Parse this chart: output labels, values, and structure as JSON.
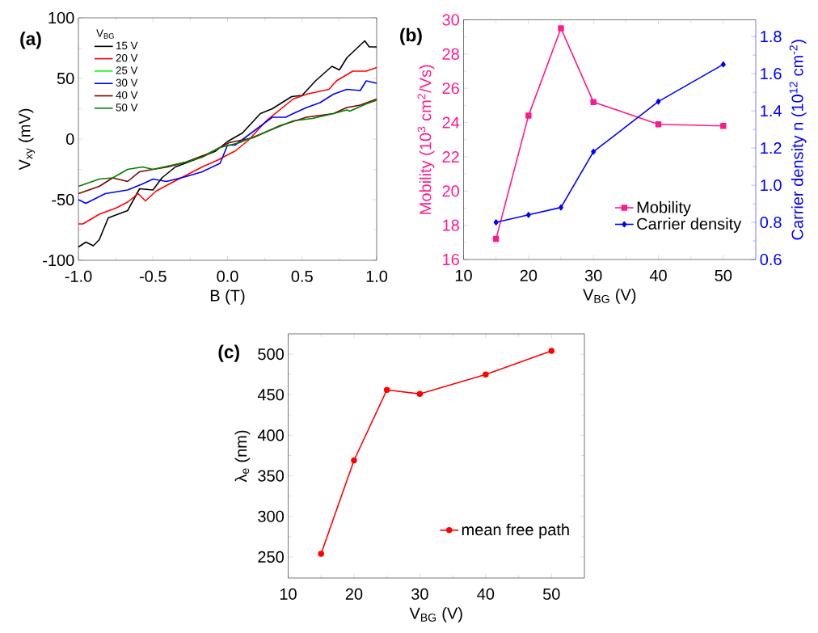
{
  "chart_data": [
    {
      "type": "line",
      "xlabel": "B (T)",
      "ylabel": "V$_{xy}$ (mV)",
      "legend_title": "V$_{BG}$",
      "legend": "top left",
      "annotations": [
        "(a)"
      ],
      "xlim": [
        -1,
        1
      ],
      "xticks": [
        {
          "value": -1,
          "label": "-1.0"
        },
        {
          "value": -0.5,
          "label": "-0.5"
        },
        {
          "value": 0,
          "label": "0.0"
        },
        {
          "value": 0.5,
          "label": "0.5"
        },
        {
          "value": 1,
          "label": "1.0"
        }
      ],
      "ylim": [
        -100,
        100
      ],
      "yticks": [
        -100,
        -50,
        0,
        50,
        100
      ],
      "series": [
        {
          "name": "15 V",
          "color": "#000000",
          "x": [
            -1,
            -0.95,
            -0.9,
            -0.86,
            -0.8,
            -0.67,
            -0.59,
            -0.5,
            -0.44,
            -0.35,
            -0.22,
            -0.08,
            0,
            0.1,
            0.22,
            0.3,
            0.43,
            0.5,
            0.59,
            0.7,
            0.75,
            0.8,
            0.92,
            0.95,
            1
          ],
          "values": [
            -89,
            -85,
            -88,
            -83,
            -65,
            -59,
            -41,
            -42,
            -32,
            -23,
            -17,
            -10,
            -2,
            5,
            21,
            25,
            35,
            36,
            48,
            60,
            57,
            67,
            81,
            76,
            76
          ]
        },
        {
          "name": "20 V",
          "color": "#ff0000",
          "x": [
            -1,
            -0.97,
            -0.86,
            -0.75,
            -0.67,
            -0.6,
            -0.55,
            -0.48,
            -0.39,
            -0.28,
            -0.17,
            -0.06,
            0,
            0.05,
            0.14,
            0.26,
            0.44,
            0.53,
            0.68,
            0.73,
            0.84,
            0.93,
            1
          ],
          "values": [
            -70,
            -70,
            -62,
            -57,
            -52,
            -45,
            -51,
            -43,
            -37,
            -30,
            -23,
            -17,
            -13,
            -10,
            -1,
            15,
            33,
            37,
            41,
            48,
            56,
            56,
            59
          ]
        },
        {
          "name": "25 V",
          "color": "#00ff00"
        },
        {
          "name": "30 V",
          "color": "#0000ff",
          "x": [
            -1,
            -0.95,
            -0.82,
            -0.67,
            -0.57,
            -0.5,
            -0.41,
            -0.28,
            -0.17,
            -0.05,
            0,
            0.05,
            0.17,
            0.3,
            0.39,
            0.44,
            0.53,
            0.62,
            0.71,
            0.8,
            0.89,
            0.93,
            1
          ],
          "values": [
            -50,
            -53,
            -45,
            -42,
            -37,
            -33,
            -35,
            -31,
            -27,
            -20,
            -5,
            -5,
            6,
            18,
            18,
            21,
            26,
            30,
            37,
            41,
            40,
            48,
            46
          ]
        },
        {
          "name": "40 V",
          "color": "#800000",
          "x": [
            -1,
            -0.86,
            -0.77,
            -0.67,
            -0.59,
            -0.5,
            -0.4,
            -0.28,
            -0.13,
            0.01,
            0.17,
            0.35,
            0.53,
            0.71,
            0.8,
            0.89,
            1
          ],
          "values": [
            -45,
            -39,
            -32,
            -35,
            -27,
            -25,
            -23,
            -19,
            -12,
            -3,
            1,
            11,
            18,
            21,
            26,
            28,
            33
          ]
        },
        {
          "name": "50 V",
          "color": "#008000",
          "x": [
            -1,
            -0.86,
            -0.77,
            -0.67,
            -0.57,
            -0.5,
            -0.39,
            -0.28,
            -0.17,
            -0.05,
            0.08,
            0.26,
            0.44,
            0.57,
            0.71,
            0.8,
            0.82,
            0.93,
            1
          ],
          "values": [
            -39,
            -33,
            -32,
            -25,
            -23,
            -25,
            -22,
            -19,
            -15,
            -7,
            -3,
            6,
            15,
            17,
            21,
            24,
            23,
            29,
            32
          ]
        }
      ]
    },
    {
      "type": "line",
      "xlabel": "V$_{BG}$ (V)",
      "ylabel": "Mobility (10$^{3}$ cm$^{2}$/Vs)",
      "y2label": "Carrier density n (10$^{12}$ cm$^{-2}$)",
      "legend": "bottom right",
      "annotations": [
        "(b)"
      ],
      "xlim": [
        10,
        55
      ],
      "xticks": [
        10,
        20,
        30,
        40,
        50
      ],
      "ylim": [
        16,
        30
      ],
      "yticks": [
        16,
        18,
        20,
        22,
        24,
        26,
        28,
        30
      ],
      "y2lim": [
        0.6,
        1.89
      ],
      "y2ticks": [
        {
          "value": 0.6,
          "label": "0.6"
        },
        {
          "value": 0.8,
          "label": "0.8"
        },
        {
          "value": 1.0,
          "label": "1.0"
        },
        {
          "value": 1.2,
          "label": "1.2"
        },
        {
          "value": 1.4,
          "label": "1.4"
        },
        {
          "value": 1.6,
          "label": "1.6"
        },
        {
          "value": 1.8,
          "label": "1.8"
        }
      ],
      "series": [
        {
          "name": "Mobility",
          "color": "#ff1a8c",
          "marker": "square",
          "x": [
            15,
            20,
            25,
            30,
            40,
            50
          ],
          "values": [
            17.2,
            24.4,
            29.5,
            25.2,
            23.9,
            23.8
          ]
        },
        {
          "name": "Carrier density",
          "color": "#0000ff",
          "marker": "diamond",
          "axis": "y2",
          "x": [
            15,
            20,
            25,
            30,
            40,
            50
          ],
          "values": [
            0.8,
            0.84,
            0.88,
            1.18,
            1.45,
            1.65
          ]
        }
      ]
    },
    {
      "type": "line",
      "xlabel": "V$_{BG}$ (V)",
      "ylabel": "λ$_{e}$ (nm)",
      "legend": "bottom right",
      "marker": "circle",
      "annotations": [
        "(c)"
      ],
      "xlim": [
        10,
        55
      ],
      "xticks": [
        10,
        20,
        30,
        40,
        50
      ],
      "ylim": [
        224,
        525
      ],
      "yticks": [
        250,
        300,
        350,
        400,
        450,
        500
      ],
      "series": [
        {
          "name": "mean free path",
          "color": "#ff0000",
          "x": [
            15,
            20,
            25,
            30,
            40,
            50
          ],
          "values": [
            254,
            369,
            456,
            451,
            475,
            504
          ]
        }
      ]
    }
  ]
}
